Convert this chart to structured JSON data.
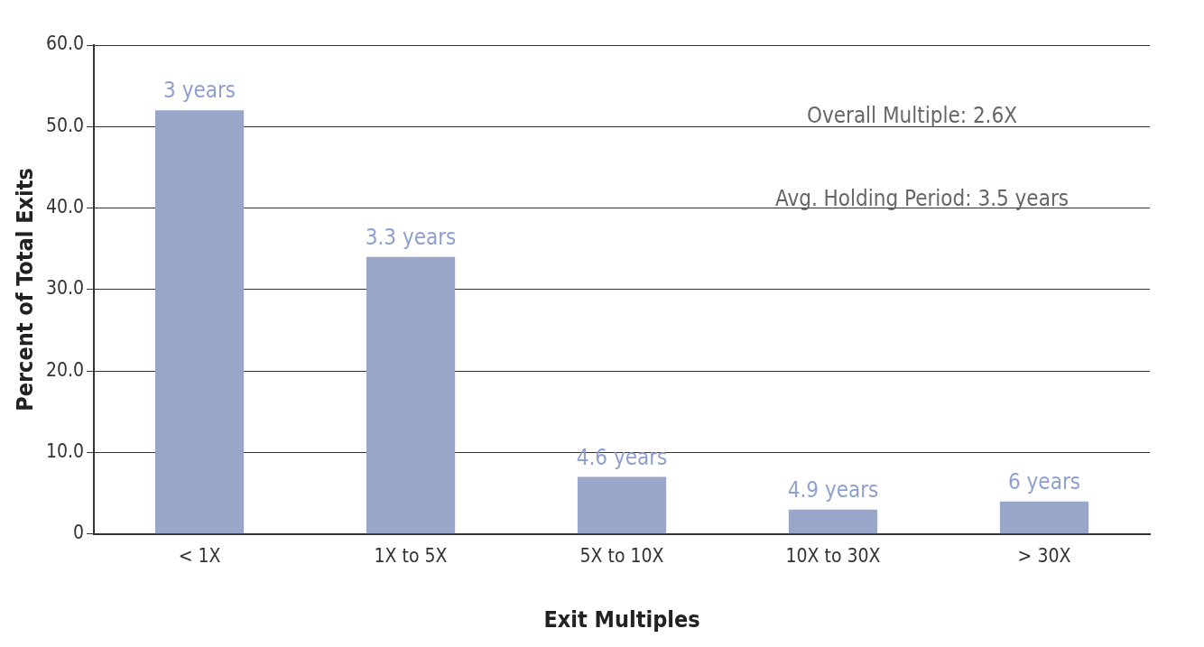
{
  "chart_data": {
    "type": "bar",
    "xlabel": "Exit Multiples",
    "ylabel": "Percent of Total Exits",
    "categories": [
      "< 1X",
      "1X to 5X",
      "5X to 10X",
      "10X to 30X",
      "> 30X"
    ],
    "values": [
      52,
      34,
      7,
      3,
      4
    ],
    "color": "#97a6c9",
    "ylim": [
      0,
      60
    ],
    "yticks": [
      {
        "value": 0,
        "label": "0"
      },
      {
        "value": 10,
        "label": "10.0"
      },
      {
        "value": 20,
        "label": "20.0"
      },
      {
        "value": 30,
        "label": "30.0"
      },
      {
        "value": 40,
        "label": "40.0"
      },
      {
        "value": 50,
        "label": "50.0"
      },
      {
        "value": 60,
        "label": "60.0"
      }
    ],
    "grid": "y",
    "annotations": [
      {
        "text": "3 years",
        "x": "< 1X",
        "y": 52
      },
      {
        "text": "3.3 years",
        "x": "1X to 5X",
        "y": 34
      },
      {
        "text": "4.6 years",
        "x": "5X to 10X",
        "y": 7
      },
      {
        "text": "4.9 years",
        "x": "10X to 30X",
        "y": 3
      },
      {
        "text": "6 years",
        "x": "> 30X",
        "y": 4
      },
      "Overall Multiple: 2.6X",
      "Avg. Holding Period: 3.5 years"
    ]
  }
}
